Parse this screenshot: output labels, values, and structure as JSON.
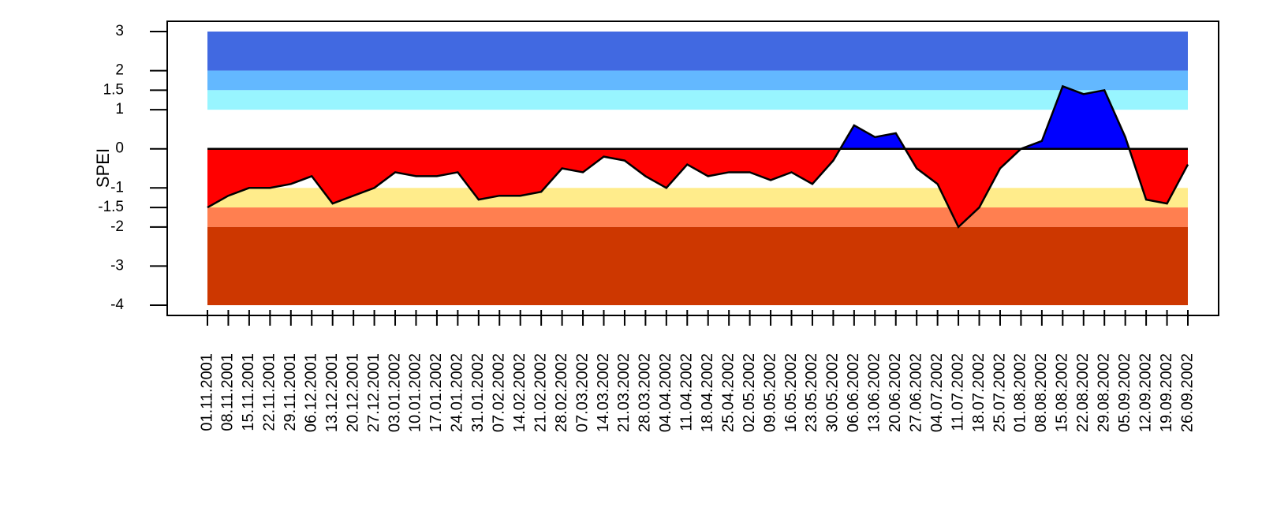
{
  "chart_data": {
    "type": "area",
    "y_label": "SPEI",
    "categories": [
      "01.11.2001",
      "08.11.2001",
      "15.11.2001",
      "22.11.2001",
      "29.11.2001",
      "06.12.2001",
      "13.12.2001",
      "20.12.2001",
      "27.12.2001",
      "03.01.2002",
      "10.01.2002",
      "17.01.2002",
      "24.01.2002",
      "31.01.2002",
      "07.02.2002",
      "14.02.2002",
      "21.02.2002",
      "28.02.2002",
      "07.03.2002",
      "14.03.2002",
      "21.03.2002",
      "28.03.2002",
      "04.04.2002",
      "11.04.2002",
      "18.04.2002",
      "25.04.2002",
      "02.05.2002",
      "09.05.2002",
      "16.05.2002",
      "23.05.2002",
      "30.05.2002",
      "06.06.2002",
      "13.06.2002",
      "20.06.2002",
      "27.06.2002",
      "04.07.2002",
      "11.07.2002",
      "18.07.2002",
      "25.07.2002",
      "01.08.2002",
      "08.08.2002",
      "15.08.2002",
      "22.08.2002",
      "29.08.2002",
      "05.09.2002",
      "12.09.2002",
      "19.09.2002",
      "26.09.2002"
    ],
    "values": [
      -1.5,
      -1.2,
      -1.0,
      -1.0,
      -0.9,
      -0.7,
      -1.4,
      -1.2,
      -1.0,
      -0.6,
      -0.7,
      -0.7,
      -0.6,
      -1.3,
      -1.2,
      -1.2,
      -1.1,
      -0.5,
      -0.6,
      -0.2,
      -0.3,
      -0.7,
      -1.0,
      -0.4,
      -0.7,
      -0.6,
      -0.6,
      -0.8,
      -0.6,
      -0.9,
      -0.3,
      0.6,
      0.3,
      0.4,
      -0.5,
      -0.9,
      -2.0,
      -1.5,
      -0.5,
      0.0,
      0.2,
      1.6,
      1.4,
      1.5,
      0.3,
      -1.3,
      -1.4,
      -0.4
    ],
    "positive_color": "#0000ff",
    "negative_color": "#ff0000",
    "bands": [
      {
        "from": 2,
        "to": 3,
        "color": "#4169e1"
      },
      {
        "from": 1.5,
        "to": 2,
        "color": "#63b8ff"
      },
      {
        "from": 1,
        "to": 1.5,
        "color": "#98f5ff"
      },
      {
        "from": -1.5,
        "to": -1,
        "color": "#ffec8b"
      },
      {
        "from": -2,
        "to": -1.5,
        "color": "#ff7f50"
      },
      {
        "from": -4,
        "to": -2,
        "color": "#cd3700"
      }
    ],
    "ylim": [
      -4,
      3
    ],
    "yticks": [
      3,
      2,
      1.5,
      1,
      0,
      -1,
      -1.5,
      -2,
      -3,
      -4
    ]
  }
}
